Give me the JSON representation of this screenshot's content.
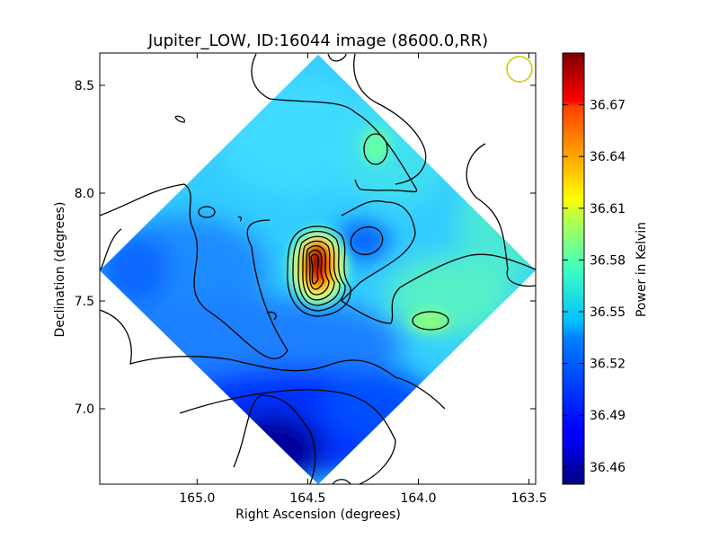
{
  "chart_data": {
    "type": "heatmap",
    "title": "Jupiter_LOW, ID:16044 image (8600.0,RR)",
    "xlabel": "Right Ascension (degrees)",
    "ylabel": "Declination (degrees)",
    "xlim": [
      165.44,
      163.47
    ],
    "ylim": [
      6.65,
      8.65
    ],
    "x_ticks": [
      {
        "value": 165.0,
        "label": "165.0"
      },
      {
        "value": 164.5,
        "label": "164.5"
      },
      {
        "value": 164.0,
        "label": "164.0"
      },
      {
        "value": 163.5,
        "label": "163.5"
      }
    ],
    "y_ticks": [
      {
        "value": 7.0,
        "label": "7.0"
      },
      {
        "value": 7.5,
        "label": "7.5"
      },
      {
        "value": 8.0,
        "label": "8.0"
      },
      {
        "value": 8.5,
        "label": "8.5"
      }
    ],
    "colorbar": {
      "label": "Power in Kelvin",
      "range": [
        36.45,
        36.7
      ],
      "colormap": "jet",
      "ticks": [
        "36.46",
        "36.49",
        "36.52",
        "36.55",
        "36.58",
        "36.61",
        "36.64",
        "36.67"
      ]
    },
    "features": [
      {
        "kind": "peak",
        "ra": 164.44,
        "dec": 7.65,
        "value": 36.7
      },
      {
        "kind": "local-high",
        "ra": 164.21,
        "dec": 8.2,
        "value": 36.56
      },
      {
        "kind": "local-high",
        "ra": 163.97,
        "dec": 7.4,
        "value": 36.57
      },
      {
        "kind": "local-low",
        "ra": 164.2,
        "dec": 7.78,
        "value": 36.48
      },
      {
        "kind": "local-low",
        "ra": 164.72,
        "dec": 6.84,
        "value": 36.455
      },
      {
        "kind": "local-low",
        "ra": 165.42,
        "dec": 7.66,
        "value": 36.5
      }
    ],
    "beam_circle_color": "#c8c800"
  }
}
